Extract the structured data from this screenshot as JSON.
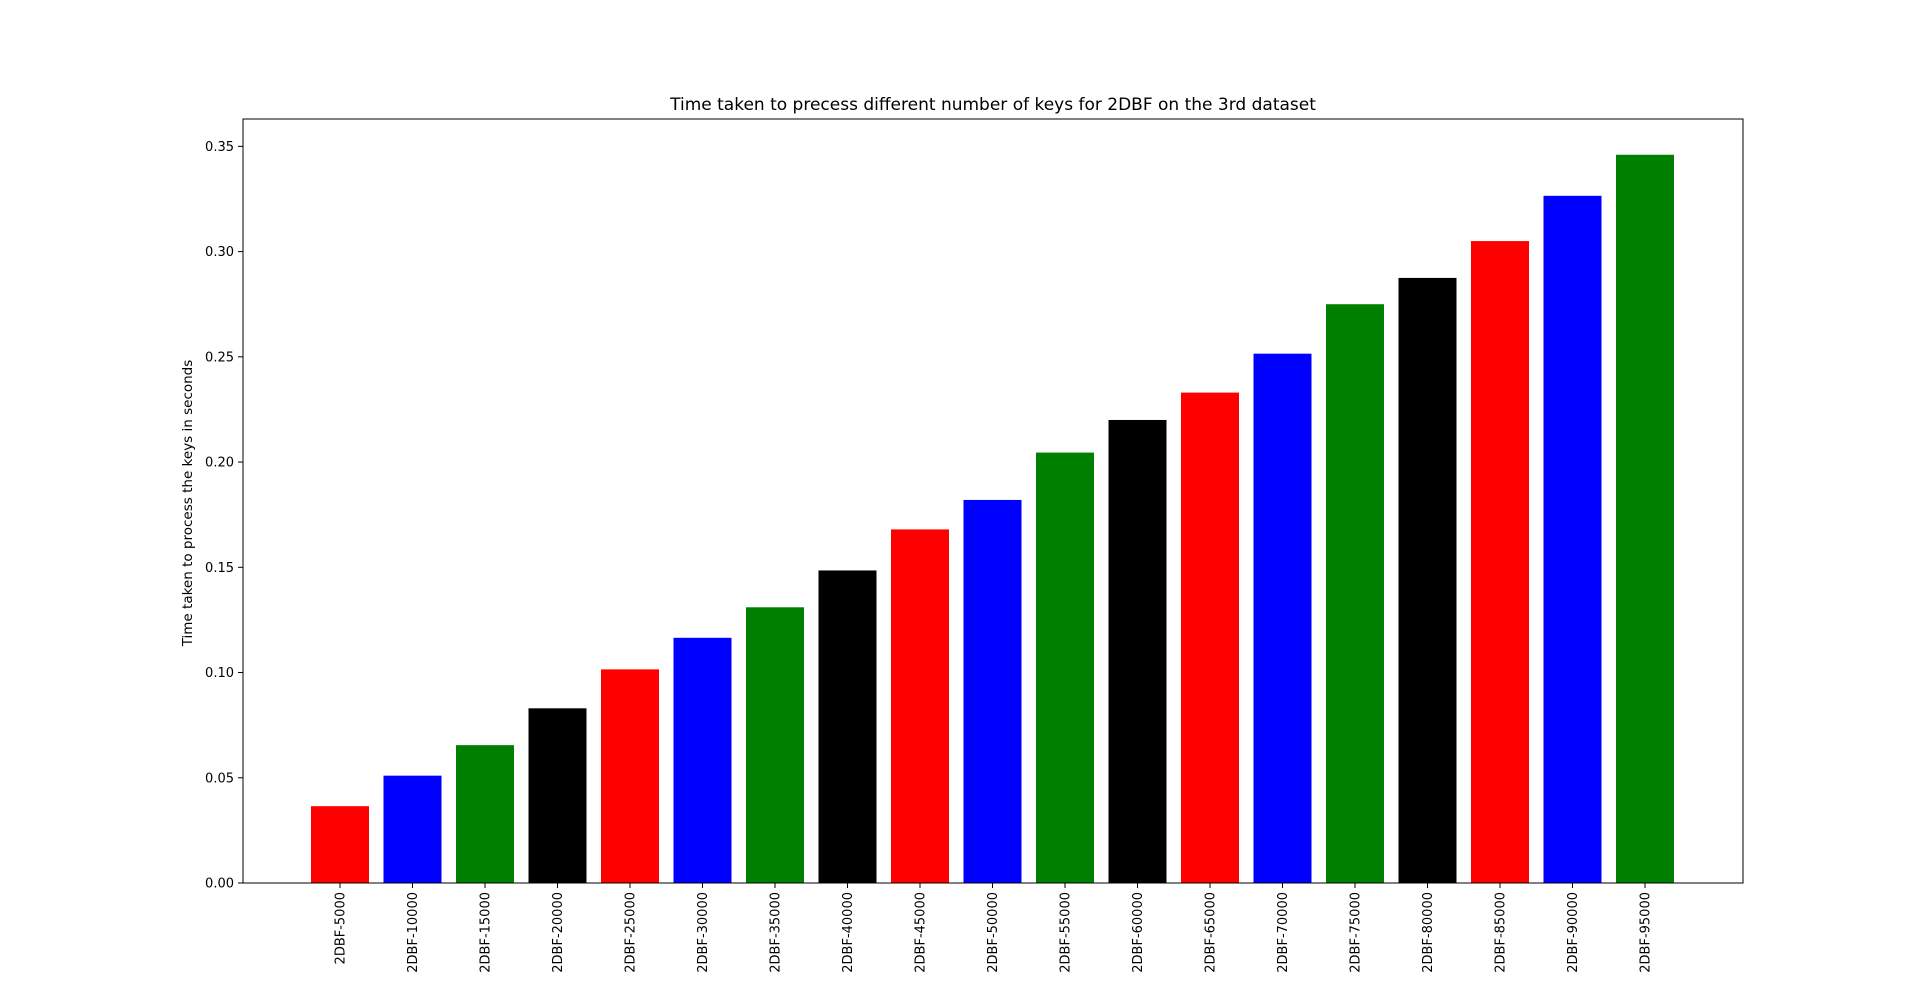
{
  "chart_data": {
    "type": "bar",
    "title": "Time taken to precess different number of keys for 2DBF on the 3rd dataset",
    "xlabel": "",
    "ylabel": "Time taken to process the keys in seconds",
    "ylim": [
      0,
      0.363
    ],
    "yticks": [
      "0.00",
      "0.05",
      "0.10",
      "0.15",
      "0.20",
      "0.25",
      "0.30",
      "0.35"
    ],
    "ytick_values": [
      0.0,
      0.05,
      0.1,
      0.15,
      0.2,
      0.25,
      0.3,
      0.35
    ],
    "grid": false,
    "legend": "none",
    "categories": [
      "2DBF-5000",
      "2DBF-10000",
      "2DBF-15000",
      "2DBF-20000",
      "2DBF-25000",
      "2DBF-30000",
      "2DBF-35000",
      "2DBF-40000",
      "2DBF-45000",
      "2DBF-50000",
      "2DBF-55000",
      "2DBF-60000",
      "2DBF-65000",
      "2DBF-70000",
      "2DBF-75000",
      "2DBF-80000",
      "2DBF-85000",
      "2DBF-90000",
      "2DBF-95000"
    ],
    "values": [
      0.0365,
      0.051,
      0.0655,
      0.083,
      0.1015,
      0.1165,
      0.131,
      0.1485,
      0.168,
      0.182,
      0.2045,
      0.22,
      0.233,
      0.2515,
      0.275,
      0.2875,
      0.305,
      0.3265,
      0.346
    ],
    "colors": [
      "#ff0000",
      "#0000ff",
      "#008000",
      "#000000",
      "#ff0000",
      "#0000ff",
      "#008000",
      "#000000",
      "#ff0000",
      "#0000ff",
      "#008000",
      "#000000",
      "#ff0000",
      "#0000ff",
      "#008000",
      "#000000",
      "#ff0000",
      "#0000ff",
      "#008000"
    ]
  }
}
